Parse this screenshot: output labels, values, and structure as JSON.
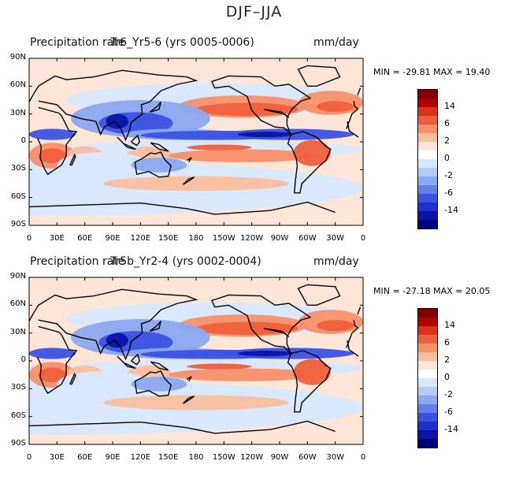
{
  "figure": {
    "title": "DJF–JJA"
  },
  "panels": [
    {
      "title_left": "Precipitation rate",
      "title_mid": "Tr6_Yr5-6 (yrs 0005-0006)",
      "units": "mm/day",
      "min_label": "MIN =",
      "min": "-29.81",
      "max_label": "MAX =",
      "max": "19.40"
    },
    {
      "title_left": "Precipitation rate",
      "title_mid": "Tr5b_Yr2-4 (yrs 0002-0004)",
      "units": "mm/day",
      "min_label": "MIN =",
      "min": "-27.18",
      "max_label": "MAX =",
      "max": "20.05"
    }
  ],
  "axes": {
    "lat_labels": [
      "90N",
      "60N",
      "30N",
      "0",
      "30S",
      "60S",
      "90S"
    ],
    "lon_labels": [
      "0",
      "30E",
      "60E",
      "90E",
      "120E",
      "150E",
      "180",
      "150W",
      "120W",
      "90W",
      "60W",
      "30W",
      "0"
    ]
  },
  "colorbar": {
    "colors": [
      "#800000",
      "#b00000",
      "#d8341c",
      "#f05f3c",
      "#f8906a",
      "#fbbf9f",
      "#fde6d8",
      "#ffffff",
      "#d8e8ff",
      "#b2ccf7",
      "#8ca8ef",
      "#6480e8",
      "#3b52e0",
      "#1f2fd0",
      "#0c14a8",
      "#000080"
    ],
    "labels": [
      "14",
      "6",
      "2",
      "0",
      "-2",
      "-6",
      "-14"
    ]
  },
  "palette": {
    "background": "#fde6d8",
    "strong_positive": "#f05f3c",
    "medium_positive": "#f8906a",
    "weak_positive": "#fbbf9f",
    "weak_negative": "#d8e8ff",
    "medium_negative": "#8ca8ef",
    "strong_negative": "#3b52e0",
    "deep_negative": "#0c14a8",
    "coast": "#000000"
  }
}
